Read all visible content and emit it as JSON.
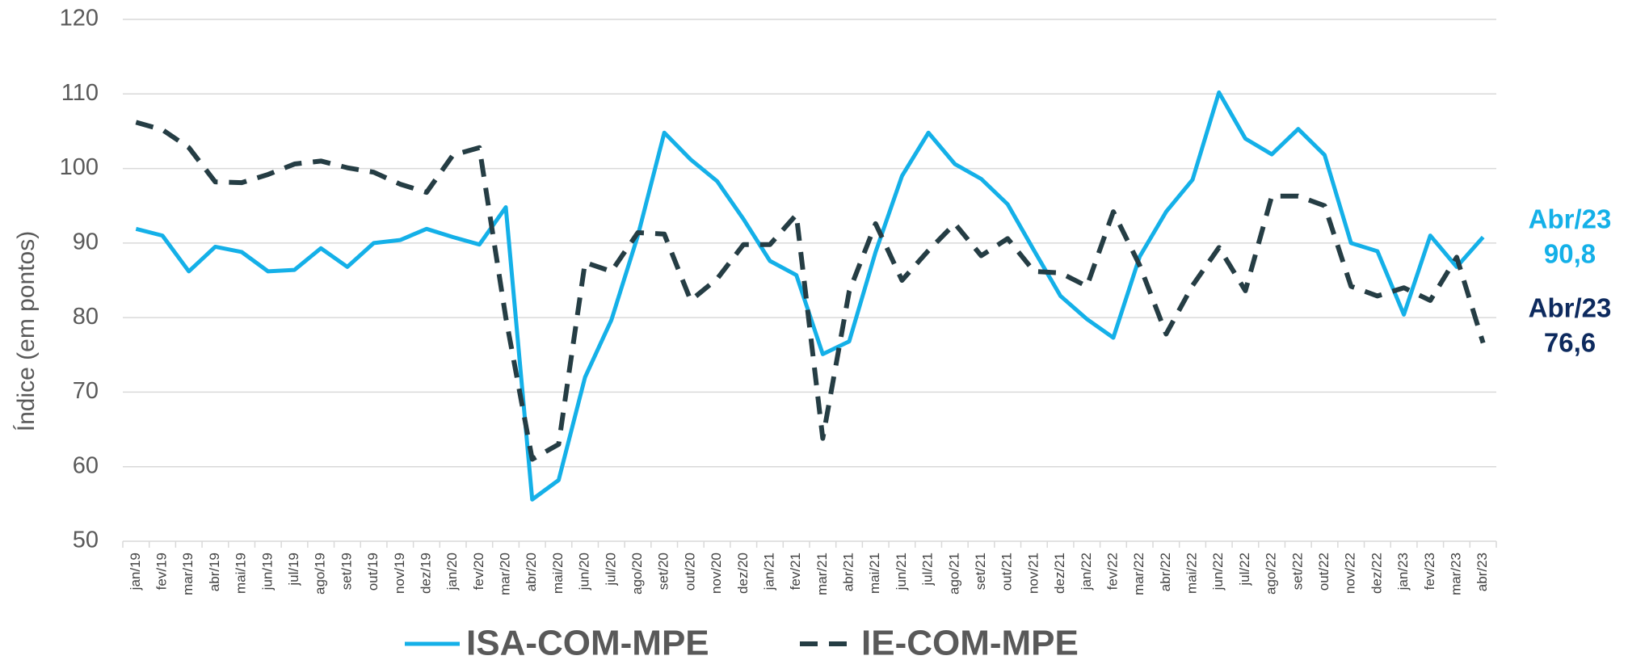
{
  "chart_data": {
    "type": "line",
    "y_label": "Índice (em pontos)",
    "categories": [
      "jan/19",
      "fev/19",
      "mar/19",
      "abr/19",
      "mai/19",
      "jun/19",
      "jul/19",
      "ago/19",
      "set/19",
      "out/19",
      "nov/19",
      "dez/19",
      "jan/20",
      "fev/20",
      "mar/20",
      "abr/20",
      "mai/20",
      "jun/20",
      "jul/20",
      "ago/20",
      "set/20",
      "out/20",
      "nov/20",
      "dez/20",
      "jan/21",
      "fev/21",
      "mar/21",
      "abr/21",
      "mai/21",
      "jun/21",
      "jul/21",
      "ago/21",
      "set/21",
      "out/21",
      "nov/21",
      "dez/21",
      "jan/22",
      "fev/22",
      "mar/22",
      "abr/22",
      "mai/22",
      "jun/22",
      "jul/22",
      "ago/22",
      "set/22",
      "out/22",
      "nov/22",
      "dez/22",
      "jan/23",
      "fev/23",
      "mar/23",
      "abr/23"
    ],
    "series": [
      {
        "name": "ISA-COM-MPE",
        "color": "#14b0e8",
        "dashed": false,
        "values": [
          91.9,
          91.0,
          86.2,
          89.5,
          88.8,
          86.2,
          86.4,
          89.3,
          86.8,
          90.0,
          90.4,
          91.9,
          90.8,
          89.8,
          94.8,
          55.6,
          58.2,
          72.0,
          79.7,
          91.0,
          104.8,
          101.2,
          98.3,
          93.2,
          87.6,
          85.7,
          75.1,
          76.8,
          88.8,
          99.0,
          104.8,
          100.6,
          98.6,
          95.2,
          89.0,
          82.9,
          79.8,
          77.3,
          88.2,
          94.2,
          98.5,
          110.2,
          104.0,
          101.9,
          105.3,
          101.8,
          90.0,
          88.9,
          80.4,
          91.0,
          86.8,
          90.8
        ],
        "end_label": {
          "period": "Abr/23",
          "value_label": "90,8",
          "color": "#14b0e8"
        }
      },
      {
        "name": "IE-COM-MPE",
        "color": "#253d44",
        "dashed": true,
        "values": [
          106.2,
          105.2,
          102.8,
          98.2,
          98.1,
          99.2,
          100.6,
          101.0,
          100.1,
          99.5,
          97.9,
          96.8,
          101.8,
          102.8,
          80.0,
          61.0,
          63.0,
          87.4,
          86.2,
          91.4,
          91.2,
          82.3,
          85.2,
          89.8,
          89.8,
          93.8,
          63.8,
          83.5,
          92.6,
          85.0,
          89.0,
          92.6,
          88.3,
          90.6,
          86.2,
          86.0,
          84.2,
          94.2,
          87.0,
          77.8,
          84.3,
          89.4,
          83.6,
          96.3,
          96.3,
          95.0,
          84.2,
          82.9,
          84.0,
          82.3,
          88.1,
          76.6
        ],
        "end_label": {
          "period": "Abr/23",
          "value_label": "76,6",
          "color": "#0d2a5e"
        }
      }
    ],
    "ylim": [
      50,
      120
    ],
    "yticks": [
      50,
      60,
      70,
      80,
      90,
      100,
      110,
      120
    ],
    "grid": true,
    "legend": "bottom"
  }
}
